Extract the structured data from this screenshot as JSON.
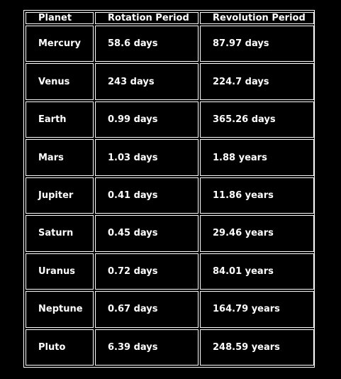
{
  "table": {
    "headers": [
      "Planet",
      "Rotation Period",
      "Revolution Period"
    ],
    "rows": [
      [
        "Mercury",
        "58.6 days",
        "87.97 days"
      ],
      [
        "Venus",
        "243 days",
        "224.7 days"
      ],
      [
        "Earth",
        "0.99 days",
        "365.26 days"
      ],
      [
        "Mars",
        "1.03 days",
        "1.88 years"
      ],
      [
        "Jupiter",
        "0.41 days",
        "11.86 years"
      ],
      [
        "Saturn",
        "0.45 days",
        "29.46 years"
      ],
      [
        "Uranus",
        "0.72 days",
        "84.01 years"
      ],
      [
        "Neptune",
        "0.67 days",
        "164.79 years"
      ],
      [
        "Pluto",
        "6.39 days",
        "248.59 years"
      ]
    ]
  },
  "colors": {
    "background": "#000000",
    "text": "#ffffff",
    "border": "#ffffff"
  }
}
